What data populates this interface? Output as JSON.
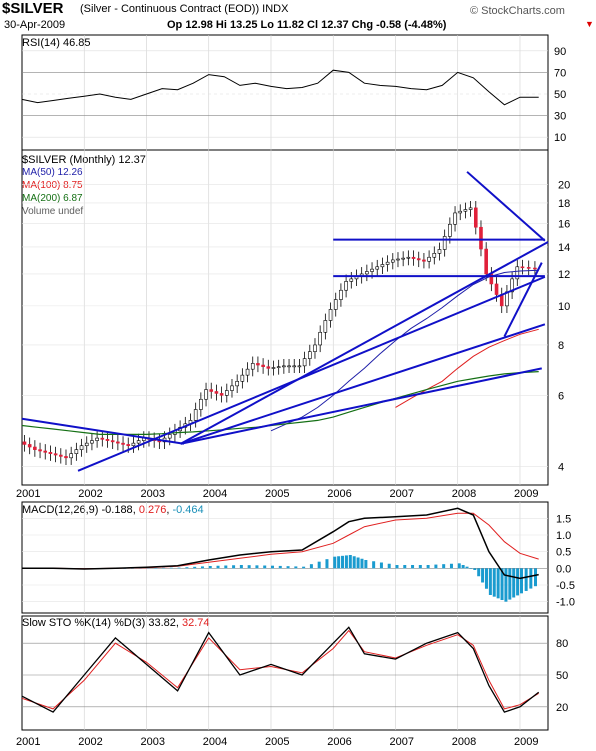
{
  "header": {
    "symbol": "$SILVER",
    "description": "(Silver - Continuous Contract (EOD)) INDX",
    "date": "30-Apr-2009",
    "ohlc": "Op 12.98  Hi 13.25  Lo 11.82  Cl 12.37  Chg -0.58 (-4.48%)",
    "brand": "© StockCharts.com"
  },
  "chart_data": [
    {
      "type": "line",
      "name": "rsi-panel",
      "title": "RSI(14) 46.85",
      "x": [
        2001.0,
        2001.25,
        2001.5,
        2001.75,
        2002.0,
        2002.25,
        2002.5,
        2002.75,
        2003.0,
        2003.25,
        2003.5,
        2003.75,
        2004.0,
        2004.25,
        2004.5,
        2004.75,
        2005.0,
        2005.25,
        2005.5,
        2005.75,
        2006.0,
        2006.25,
        2006.5,
        2006.75,
        2007.0,
        2007.25,
        2007.5,
        2007.75,
        2008.0,
        2008.25,
        2008.5,
        2008.75,
        2009.0,
        2009.3
      ],
      "series": [
        {
          "name": "RSI(14)",
          "values": [
            45,
            42,
            44,
            46,
            48,
            50,
            47,
            45,
            50,
            55,
            54,
            60,
            68,
            66,
            58,
            60,
            57,
            55,
            56,
            60,
            72,
            70,
            60,
            58,
            57,
            55,
            54,
            58,
            70,
            65,
            52,
            40,
            47,
            47
          ]
        }
      ],
      "ylim": [
        0,
        100
      ],
      "yticks": [
        "90",
        "70",
        "50",
        "30",
        "10"
      ]
    },
    {
      "type": "candlestick",
      "name": "price-panel",
      "title": "$SILVER (Monthly) 12.37",
      "legend": [
        {
          "label": "MA(50) 12.26",
          "color": "#1f1fa8"
        },
        {
          "label": "MA(100) 8.75",
          "color": "#e02020"
        },
        {
          "label": "MA(200) 6.87",
          "color": "#157015"
        },
        {
          "label": "Volume undef",
          "color": "#606060"
        }
      ],
      "x": [
        2001.0,
        2001.25,
        2001.5,
        2001.75,
        2002.0,
        2002.25,
        2002.5,
        2002.75,
        2003.0,
        2003.25,
        2003.5,
        2003.75,
        2004.0,
        2004.25,
        2004.5,
        2004.75,
        2005.0,
        2005.25,
        2005.5,
        2005.75,
        2006.0,
        2006.25,
        2006.5,
        2006.75,
        2007.0,
        2007.25,
        2007.5,
        2007.75,
        2008.0,
        2008.25,
        2008.5,
        2008.75,
        2009.0,
        2009.3
      ],
      "series": [
        {
          "name": "Close",
          "values": [
            4.6,
            4.4,
            4.3,
            4.2,
            4.5,
            4.7,
            4.6,
            4.5,
            4.7,
            4.6,
            4.9,
            5.2,
            6.2,
            6.0,
            6.5,
            7.2,
            7.0,
            7.1,
            7.1,
            8.0,
            9.8,
            11.5,
            12.0,
            12.5,
            13.0,
            13.2,
            12.9,
            13.8,
            17.0,
            17.5,
            12.0,
            10.0,
            12.5,
            12.37
          ]
        },
        {
          "name": "MA(50)",
          "values": [
            null,
            null,
            null,
            null,
            null,
            null,
            null,
            null,
            null,
            null,
            null,
            null,
            null,
            null,
            null,
            null,
            4.9,
            5.1,
            5.3,
            5.6,
            6.0,
            6.5,
            7.0,
            7.6,
            8.2,
            8.8,
            9.3,
            9.9,
            10.6,
            11.3,
            11.8,
            12.1,
            12.2,
            12.26
          ]
        },
        {
          "name": "MA(100)",
          "values": [
            null,
            null,
            null,
            null,
            null,
            null,
            null,
            null,
            null,
            null,
            null,
            null,
            null,
            null,
            null,
            null,
            null,
            null,
            null,
            null,
            null,
            null,
            null,
            null,
            5.6,
            5.9,
            6.2,
            6.5,
            7.0,
            7.5,
            7.9,
            8.2,
            8.5,
            8.75
          ]
        },
        {
          "name": "MA(200)",
          "values": [
            5.05,
            5.0,
            4.95,
            4.9,
            4.85,
            4.8,
            4.8,
            4.8,
            4.8,
            4.82,
            4.85,
            4.87,
            4.9,
            4.93,
            4.97,
            5.0,
            5.05,
            5.1,
            5.15,
            5.2,
            5.3,
            5.45,
            5.6,
            5.75,
            5.9,
            6.05,
            6.2,
            6.35,
            6.5,
            6.6,
            6.7,
            6.78,
            6.83,
            6.87
          ]
        }
      ],
      "scale": "log",
      "ylim": [
        3.7,
        23.0
      ],
      "yticks": [
        "20",
        "18",
        "16",
        "14",
        "12",
        "10",
        "8",
        "6",
        "4"
      ],
      "annotations": [
        "horizontal resistance ~14.5",
        "horizontal support ~11.8",
        "trendlines",
        "wedge"
      ]
    },
    {
      "type": "line",
      "name": "macd-panel",
      "title": "MACD(12,26,9)",
      "values_text": [
        "-0.188",
        "0.276",
        "-0.464"
      ],
      "x": [
        2001.0,
        2001.5,
        2002.0,
        2002.5,
        2003.0,
        2003.5,
        2004.0,
        2004.5,
        2005.0,
        2005.5,
        2006.0,
        2006.25,
        2006.5,
        2007.0,
        2007.5,
        2008.0,
        2008.25,
        2008.5,
        2008.75,
        2009.0,
        2009.3
      ],
      "series": [
        {
          "name": "MACD",
          "values": [
            0.0,
            0.0,
            -0.02,
            0.0,
            0.03,
            0.08,
            0.25,
            0.4,
            0.5,
            0.55,
            1.1,
            1.4,
            1.5,
            1.55,
            1.6,
            1.8,
            1.6,
            0.5,
            -0.2,
            -0.3,
            -0.188
          ]
        },
        {
          "name": "Signal",
          "values": [
            0.0,
            0.0,
            -0.01,
            0.0,
            0.02,
            0.06,
            0.18,
            0.3,
            0.42,
            0.5,
            0.75,
            1.0,
            1.25,
            1.45,
            1.5,
            1.65,
            1.65,
            1.3,
            0.8,
            0.45,
            0.276
          ]
        }
      ],
      "ylim": [
        -1.25,
        1.9
      ],
      "yticks": [
        "1.5",
        "1.0",
        "0.5",
        "0.0",
        "-0.5",
        "-1.0"
      ]
    },
    {
      "type": "line",
      "name": "sto-panel",
      "title": "Slow STO %K(14) %D(3)",
      "values_text": [
        "33.82",
        "32.74"
      ],
      "x": [
        2001.0,
        2001.5,
        2002.0,
        2002.5,
        2003.0,
        2003.5,
        2004.0,
        2004.5,
        2005.0,
        2005.5,
        2006.0,
        2006.25,
        2006.5,
        2007.0,
        2007.5,
        2008.0,
        2008.25,
        2008.5,
        2008.75,
        2009.0,
        2009.3
      ],
      "series": [
        {
          "name": "%K",
          "values": [
            30,
            15,
            50,
            85,
            60,
            35,
            90,
            50,
            60,
            50,
            80,
            95,
            70,
            65,
            80,
            90,
            75,
            40,
            15,
            20,
            33.82
          ]
        },
        {
          "name": "%D",
          "values": [
            28,
            18,
            45,
            80,
            62,
            38,
            85,
            55,
            58,
            52,
            75,
            92,
            72,
            66,
            78,
            88,
            78,
            45,
            18,
            22,
            32.74
          ]
        }
      ],
      "ylim": [
        0,
        100
      ],
      "yticks": [
        "80",
        "50",
        "20"
      ]
    }
  ],
  "x_axis_labels": [
    "2001",
    "2002",
    "2003",
    "2004",
    "2005",
    "2006",
    "2007",
    "2008",
    "2009"
  ]
}
